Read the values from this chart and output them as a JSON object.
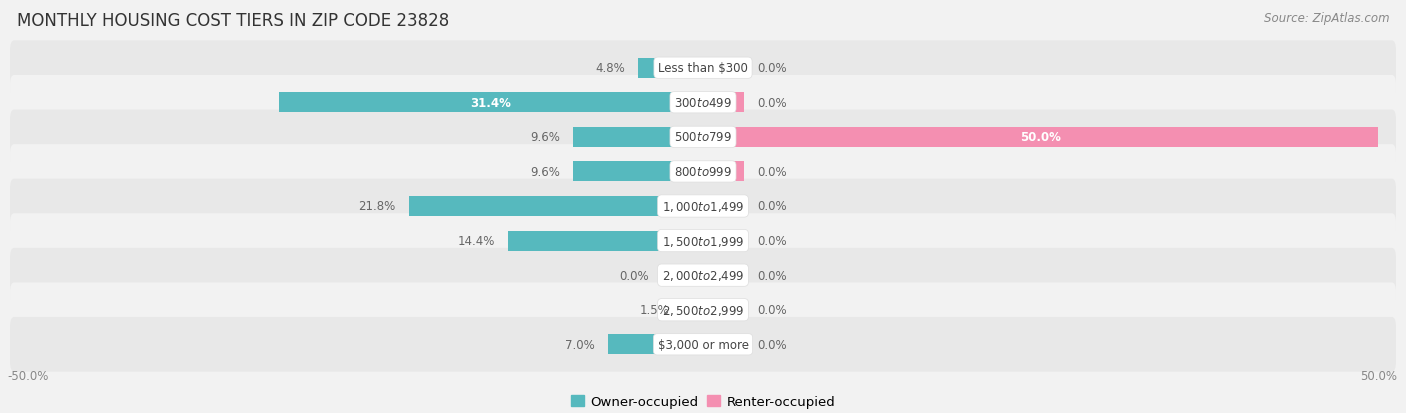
{
  "title": "MONTHLY HOUSING COST TIERS IN ZIP CODE 23828",
  "source": "Source: ZipAtlas.com",
  "categories": [
    "Less than $300",
    "$300 to $499",
    "$500 to $799",
    "$800 to $999",
    "$1,000 to $1,499",
    "$1,500 to $1,999",
    "$2,000 to $2,499",
    "$2,500 to $2,999",
    "$3,000 or more"
  ],
  "owner_values": [
    4.8,
    31.4,
    9.6,
    9.6,
    21.8,
    14.4,
    0.0,
    1.5,
    7.0
  ],
  "renter_values": [
    0.0,
    0.0,
    50.0,
    0.0,
    0.0,
    0.0,
    0.0,
    0.0,
    0.0
  ],
  "owner_color": "#56b9be",
  "renter_color": "#f48fb1",
  "owner_label": "Owner-occupied",
  "renter_label": "Renter-occupied",
  "axis_max": 50.0,
  "background_color": "#f2f2f2",
  "row_color_odd": "#e8e8e8",
  "row_color_even": "#f2f2f2",
  "bar_height": 0.58,
  "label_color_dark": "#666666",
  "label_color_white": "#ffffff",
  "center_label_color": "#444444",
  "title_fontsize": 12,
  "source_fontsize": 8.5,
  "bar_label_fontsize": 8.5,
  "category_fontsize": 8.5,
  "legend_fontsize": 9.5,
  "tick_fontsize": 8.5,
  "stub_size": 3.0
}
